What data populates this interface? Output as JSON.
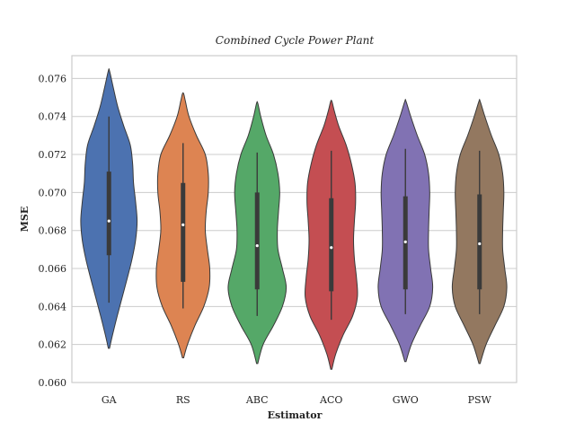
{
  "chart_data": {
    "type": "violin",
    "title": "Combined Cycle Power Plant",
    "xlabel": "Estimator",
    "ylabel": "MSE",
    "ylim": [
      0.06,
      0.0772
    ],
    "yticks": [
      "0.060",
      "0.062",
      "0.064",
      "0.066",
      "0.068",
      "0.070",
      "0.072",
      "0.074",
      "0.076"
    ],
    "ytick_values": [
      0.06,
      0.062,
      0.064,
      0.066,
      0.068,
      0.07,
      0.072,
      0.074,
      0.076
    ],
    "grid": true,
    "categories": [
      "GA",
      "RS",
      "ABC",
      "ACO",
      "GWO",
      "PSW"
    ],
    "colors": [
      "#4c72b0",
      "#dd8452",
      "#55a868",
      "#c44e52",
      "#8172b3",
      "#937860"
    ],
    "series": [
      {
        "name": "GA",
        "min": 0.0642,
        "q1": 0.0667,
        "median": 0.0685,
        "q3": 0.0711,
        "max": 0.074,
        "density": [
          [
            0.0618,
            0.02
          ],
          [
            0.0625,
            0.12
          ],
          [
            0.0635,
            0.28
          ],
          [
            0.0645,
            0.45
          ],
          [
            0.0655,
            0.62
          ],
          [
            0.0665,
            0.78
          ],
          [
            0.0675,
            0.9
          ],
          [
            0.0685,
            0.95
          ],
          [
            0.0695,
            0.9
          ],
          [
            0.0705,
            0.83
          ],
          [
            0.0715,
            0.8
          ],
          [
            0.0725,
            0.72
          ],
          [
            0.0735,
            0.5
          ],
          [
            0.0745,
            0.3
          ],
          [
            0.0755,
            0.15
          ],
          [
            0.0764,
            0.02
          ]
        ]
      },
      {
        "name": "RS",
        "min": 0.0639,
        "q1": 0.0653,
        "median": 0.0683,
        "q3": 0.0705,
        "max": 0.0726,
        "density": [
          [
            0.0613,
            0.02
          ],
          [
            0.062,
            0.15
          ],
          [
            0.063,
            0.4
          ],
          [
            0.064,
            0.7
          ],
          [
            0.065,
            0.88
          ],
          [
            0.066,
            0.9
          ],
          [
            0.067,
            0.82
          ],
          [
            0.068,
            0.75
          ],
          [
            0.069,
            0.78
          ],
          [
            0.07,
            0.85
          ],
          [
            0.071,
            0.85
          ],
          [
            0.072,
            0.75
          ],
          [
            0.073,
            0.45
          ],
          [
            0.074,
            0.2
          ],
          [
            0.0748,
            0.08
          ],
          [
            0.0752,
            0.02
          ]
        ]
      },
      {
        "name": "ABC",
        "min": 0.0635,
        "q1": 0.0649,
        "median": 0.0672,
        "q3": 0.07,
        "max": 0.0721,
        "density": [
          [
            0.061,
            0.02
          ],
          [
            0.062,
            0.2
          ],
          [
            0.063,
            0.55
          ],
          [
            0.064,
            0.85
          ],
          [
            0.065,
            0.98
          ],
          [
            0.066,
            0.85
          ],
          [
            0.067,
            0.7
          ],
          [
            0.068,
            0.68
          ],
          [
            0.069,
            0.72
          ],
          [
            0.07,
            0.76
          ],
          [
            0.071,
            0.7
          ],
          [
            0.072,
            0.55
          ],
          [
            0.073,
            0.3
          ],
          [
            0.074,
            0.12
          ],
          [
            0.0747,
            0.02
          ]
        ]
      },
      {
        "name": "ACO",
        "min": 0.0633,
        "q1": 0.0648,
        "median": 0.0671,
        "q3": 0.0697,
        "max": 0.0722,
        "density": [
          [
            0.0607,
            0.02
          ],
          [
            0.0615,
            0.15
          ],
          [
            0.0625,
            0.4
          ],
          [
            0.0635,
            0.72
          ],
          [
            0.0645,
            0.88
          ],
          [
            0.0655,
            0.85
          ],
          [
            0.0665,
            0.78
          ],
          [
            0.0675,
            0.75
          ],
          [
            0.0685,
            0.78
          ],
          [
            0.0695,
            0.82
          ],
          [
            0.0705,
            0.8
          ],
          [
            0.0715,
            0.68
          ],
          [
            0.0725,
            0.5
          ],
          [
            0.0735,
            0.25
          ],
          [
            0.0743,
            0.1
          ],
          [
            0.0748,
            0.02
          ]
        ]
      },
      {
        "name": "GWO",
        "min": 0.0636,
        "q1": 0.0649,
        "median": 0.0674,
        "q3": 0.0698,
        "max": 0.0723,
        "density": [
          [
            0.0611,
            0.02
          ],
          [
            0.062,
            0.2
          ],
          [
            0.063,
            0.5
          ],
          [
            0.064,
            0.82
          ],
          [
            0.065,
            0.92
          ],
          [
            0.066,
            0.85
          ],
          [
            0.067,
            0.78
          ],
          [
            0.068,
            0.78
          ],
          [
            0.069,
            0.8
          ],
          [
            0.07,
            0.82
          ],
          [
            0.071,
            0.78
          ],
          [
            0.072,
            0.65
          ],
          [
            0.073,
            0.4
          ],
          [
            0.074,
            0.18
          ],
          [
            0.0748,
            0.02
          ]
        ]
      },
      {
        "name": "PSW",
        "min": 0.0636,
        "q1": 0.0649,
        "median": 0.0673,
        "q3": 0.0699,
        "max": 0.0722,
        "density": [
          [
            0.061,
            0.02
          ],
          [
            0.062,
            0.22
          ],
          [
            0.063,
            0.52
          ],
          [
            0.064,
            0.82
          ],
          [
            0.065,
            0.92
          ],
          [
            0.066,
            0.85
          ],
          [
            0.067,
            0.78
          ],
          [
            0.068,
            0.78
          ],
          [
            0.069,
            0.8
          ],
          [
            0.07,
            0.82
          ],
          [
            0.071,
            0.78
          ],
          [
            0.072,
            0.65
          ],
          [
            0.073,
            0.4
          ],
          [
            0.074,
            0.18
          ],
          [
            0.0748,
            0.02
          ]
        ]
      }
    ]
  }
}
